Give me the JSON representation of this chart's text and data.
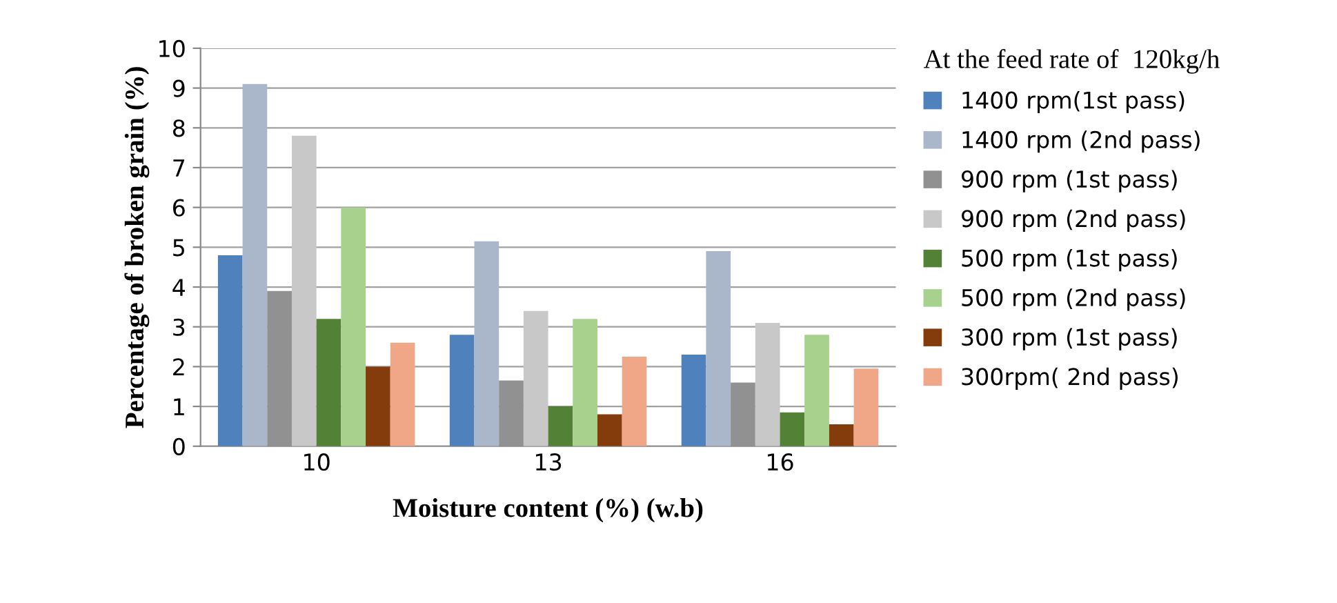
{
  "chart_data": {
    "type": "bar",
    "xlabel": "Moisture content (%) (w.b)",
    "ylabel": "Percentage of broken grain (%)",
    "legend_title": "At the feed rate of  120kg/h",
    "categories": [
      "10",
      "13",
      "16"
    ],
    "series": [
      {
        "name": "1400 rpm(1st pass)",
        "color": "#4f81bd",
        "values": [
          4.8,
          2.8,
          2.3
        ]
      },
      {
        "name": "1400 rpm (2nd pass)",
        "color": "#aab7ca",
        "values": [
          9.1,
          5.15,
          4.9
        ]
      },
      {
        "name": "900 rpm (1st pass)",
        "color": "#919191",
        "values": [
          3.9,
          1.65,
          1.6
        ]
      },
      {
        "name": "900 rpm (2nd pass)",
        "color": "#c8c8c8",
        "values": [
          7.8,
          3.4,
          3.1
        ]
      },
      {
        "name": "500 rpm (1st pass)",
        "color": "#538135",
        "values": [
          3.2,
          1.0,
          0.85
        ]
      },
      {
        "name": "500 rpm (2nd pass)",
        "color": "#a9d18e",
        "values": [
          6.0,
          3.2,
          2.8
        ]
      },
      {
        "name": "300 rpm (1st pass)",
        "color": "#843c0c",
        "values": [
          2.0,
          0.8,
          0.55
        ]
      },
      {
        "name": "300rpm( 2nd pass)",
        "color": "#f0a788",
        "values": [
          2.6,
          2.25,
          1.95
        ]
      }
    ],
    "ylim": [
      0,
      10
    ],
    "yticks": [
      0,
      1,
      2,
      3,
      4,
      5,
      6,
      7,
      8,
      9,
      10
    ],
    "grid": "y",
    "legend": "right"
  }
}
